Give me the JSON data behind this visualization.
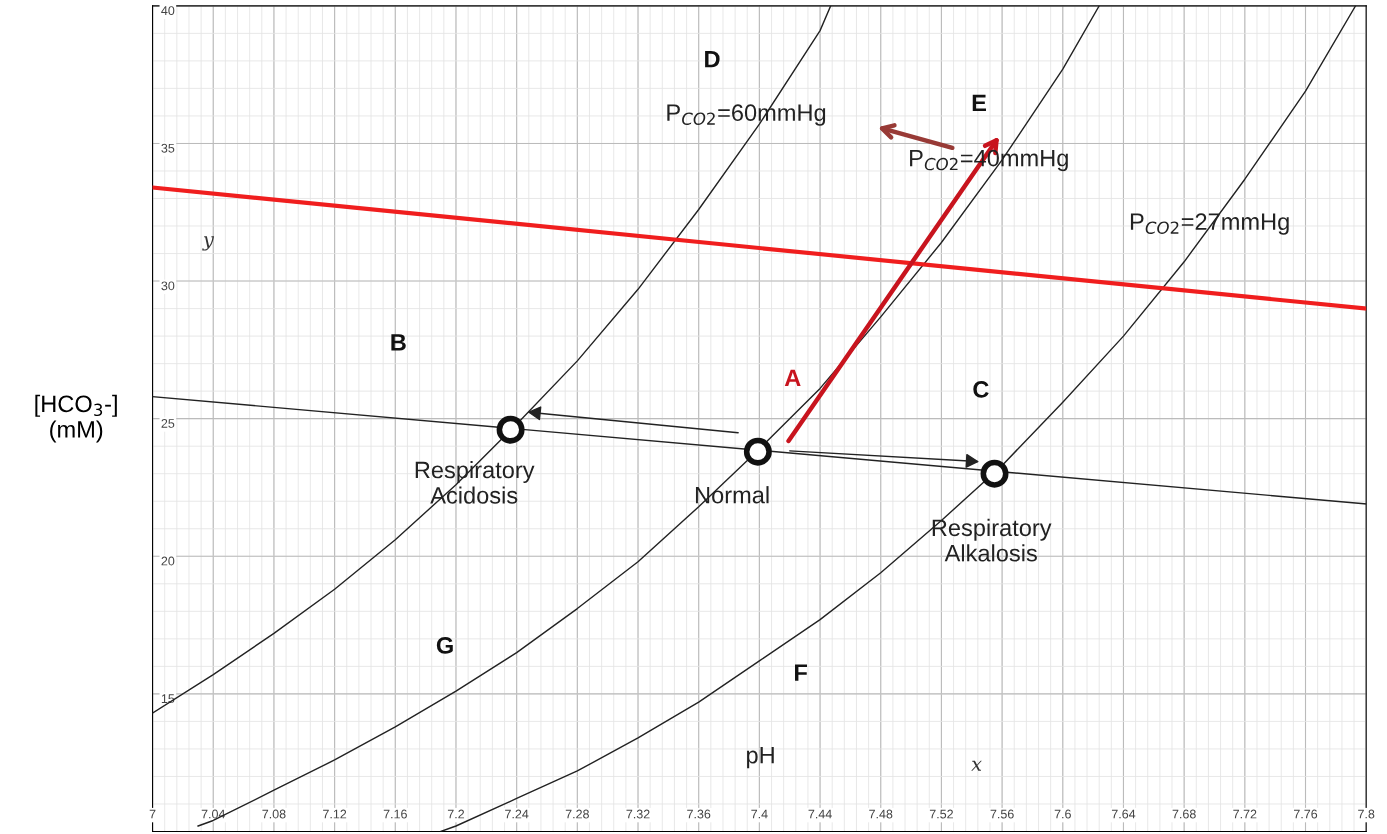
{
  "chart_data": {
    "type": "line",
    "ylabel": "[HCO$_{3}$-]\n(mM)",
    "xlim": [
      7,
      7.8
    ],
    "ylim": [
      10,
      40
    ],
    "xticks": [
      7,
      7.04,
      7.08,
      7.12,
      7.16,
      7.2,
      7.24,
      7.28,
      7.32,
      7.36,
      7.4,
      7.44,
      7.48,
      7.52,
      7.56,
      7.6,
      7.64,
      7.68,
      7.72,
      7.76,
      7.8
    ],
    "yticks": [
      15,
      20,
      25,
      30,
      35,
      40
    ],
    "grid": true,
    "legend": false,
    "marker": "none",
    "line_style": "solid",
    "series": [
      {
        "name": "P$_{CO2}$=60mmHg",
        "color": "#222222",
        "x": [
          7.0,
          7.04,
          7.08,
          7.12,
          7.16,
          7.2,
          7.24,
          7.28,
          7.32,
          7.36,
          7.4,
          7.44,
          7.447
        ],
        "values": [
          14.3,
          15.7,
          17.2,
          18.8,
          20.6,
          22.6,
          24.8,
          27.1,
          29.7,
          32.6,
          35.7,
          39.1,
          40
        ]
      },
      {
        "name": "P$_{CO2}$=40mmHg",
        "color": "#222222",
        "x": [
          7.03,
          7.04,
          7.08,
          7.12,
          7.16,
          7.2,
          7.24,
          7.28,
          7.32,
          7.36,
          7.4,
          7.44,
          7.48,
          7.52,
          7.56,
          7.6,
          7.624
        ],
        "values": [
          10.2,
          10.4,
          11.5,
          12.6,
          13.8,
          15.1,
          16.5,
          18.1,
          19.8,
          21.8,
          23.9,
          26.1,
          28.7,
          31.4,
          34.4,
          37.7,
          40
        ]
      },
      {
        "name": "P$_{CO2}$=27mmHg",
        "color": "#222222",
        "x": [
          7.19,
          7.2,
          7.24,
          7.28,
          7.32,
          7.36,
          7.4,
          7.44,
          7.48,
          7.52,
          7.56,
          7.6,
          7.64,
          7.68,
          7.72,
          7.76,
          7.793
        ],
        "values": [
          10.0,
          10.2,
          11.2,
          12.2,
          13.4,
          14.7,
          16.2,
          17.7,
          19.4,
          21.3,
          23.3,
          25.6,
          28.0,
          30.7,
          33.7,
          36.9,
          40
        ]
      },
      {
        "color": "#222222",
        "x": [
          7.0,
          7.8
        ],
        "values": [
          25.8,
          21.9
        ]
      },
      {
        "color": "#f01e1e",
        "x": [
          7.0,
          7.8
        ],
        "values": [
          33.4,
          29.0
        ]
      },
      {
        "type": "scatter",
        "color": "#111111",
        "marker": "circle",
        "x": [
          7.236,
          7.399,
          7.555
        ],
        "values": [
          24.6,
          23.8,
          23.0
        ]
      }
    ],
    "annotations": [
      "Respiratory\nAcidosis",
      "Normal",
      "Respiratory\nAlkalosis",
      "D",
      "E",
      "B",
      "C",
      "G",
      "F",
      "pH",
      "y",
      "x",
      "A"
    ]
  }
}
